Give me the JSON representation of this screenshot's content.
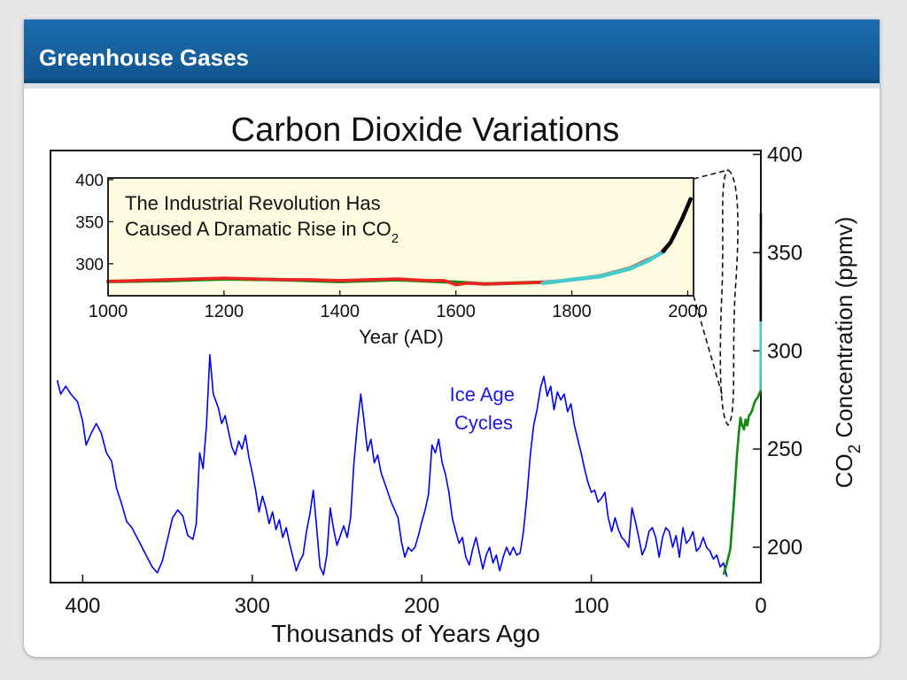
{
  "slide": {
    "title": "Greenhouse Gases"
  },
  "colors": {
    "title_bar": "#1d6db0",
    "ice_age_series": "#0000ee",
    "inset_background": "#fffbe0",
    "series_red": "#ee2222",
    "series_green": "#118811",
    "series_cyan": "#44cccc",
    "series_black": "#000000"
  },
  "chart_data": [
    {
      "type": "line",
      "title": "Carbon Dioxide Variations",
      "xlabel": "Thousands of Years Ago",
      "ylabel_prefix": "CO",
      "ylabel_sub": "2",
      "ylabel_suffix": " Concentration (ppmv)",
      "x_reversed": true,
      "xlim": [
        419,
        0
      ],
      "ylim": [
        182,
        402
      ],
      "x_ticks": [
        400,
        300,
        200,
        100,
        0
      ],
      "y_ticks": [
        200,
        250,
        300,
        350,
        400
      ],
      "y_axis_side": "right",
      "annotation": {
        "line1": "Ice Age",
        "line2": "Cycles"
      },
      "series": [
        {
          "color": "#0000ee",
          "points": [
            [
              415,
              285
            ],
            [
              413,
              278
            ],
            [
              410,
              282
            ],
            [
              407,
              278
            ],
            [
              403,
              274
            ],
            [
              400,
              264
            ],
            [
              398,
              252
            ],
            [
              395,
              258
            ],
            [
              392,
              263
            ],
            [
              389,
              258
            ],
            [
              386,
              248
            ],
            [
              383,
              244
            ],
            [
              380,
              230
            ],
            [
              377,
              222
            ],
            [
              374,
              213
            ],
            [
              371,
              210
            ],
            [
              368,
              205
            ],
            [
              365,
              200
            ],
            [
              362,
              195
            ],
            [
              359,
              190
            ],
            [
              356,
              187
            ],
            [
              353,
              193
            ],
            [
              350,
              204
            ],
            [
              347,
              215
            ],
            [
              344,
              219
            ],
            [
              341,
              216
            ],
            [
              338,
              206
            ],
            [
              335,
              204
            ],
            [
              333,
              212
            ],
            [
              331,
              248
            ],
            [
              329,
              240
            ],
            [
              327,
              262
            ],
            [
              325,
              298
            ],
            [
              323,
              278
            ],
            [
              320,
              271
            ],
            [
              318,
              263
            ],
            [
              316,
              267
            ],
            [
              314,
              259
            ],
            [
              312,
              251
            ],
            [
              310,
              247
            ],
            [
              308,
              254
            ],
            [
              306,
              250
            ],
            [
              304,
              257
            ],
            [
              302,
              246
            ],
            [
              300,
              238
            ],
            [
              298,
              229
            ],
            [
              296,
              218
            ],
            [
              294,
              226
            ],
            [
              292,
              220
            ],
            [
              290,
              212
            ],
            [
              288,
              218
            ],
            [
              286,
              209
            ],
            [
              284,
              214
            ],
            [
              282,
              205
            ],
            [
              280,
              210
            ],
            [
              278,
              202
            ],
            [
              276,
              195
            ],
            [
              274,
              188
            ],
            [
              272,
              193
            ],
            [
              270,
              196
            ],
            [
              268,
              208
            ],
            [
              266,
              217
            ],
            [
              264,
              229
            ],
            [
              262,
              210
            ],
            [
              260,
              190
            ],
            [
              258,
              186
            ],
            [
              256,
              196
            ],
            [
              254,
              220
            ],
            [
              252,
              209
            ],
            [
              250,
              201
            ],
            [
              248,
              206
            ],
            [
              246,
              211
            ],
            [
              244,
              205
            ],
            [
              242,
              215
            ],
            [
              240,
              243
            ],
            [
              238,
              262
            ],
            [
              236,
              278
            ],
            [
              234,
              264
            ],
            [
              232,
              249
            ],
            [
              230,
              255
            ],
            [
              228,
              243
            ],
            [
              226,
              247
            ],
            [
              224,
              238
            ],
            [
              222,
              233
            ],
            [
              220,
              228
            ],
            [
              218,
              223
            ],
            [
              216,
              219
            ],
            [
              214,
              215
            ],
            [
              212,
              203
            ],
            [
              210,
              195
            ],
            [
              208,
              200
            ],
            [
              206,
              198
            ],
            [
              204,
              200
            ],
            [
              202,
              206
            ],
            [
              200,
              213
            ],
            [
              198,
              219
            ],
            [
              196,
              227
            ],
            [
              194,
              252
            ],
            [
              192,
              248
            ],
            [
              190,
              255
            ],
            [
              188,
              243
            ],
            [
              186,
              237
            ],
            [
              184,
              228
            ],
            [
              182,
              215
            ],
            [
              180,
              208
            ],
            [
              178,
              202
            ],
            [
              176,
              205
            ],
            [
              174,
              195
            ],
            [
              172,
              191
            ],
            [
              170,
              199
            ],
            [
              168,
              205
            ],
            [
              166,
              197
            ],
            [
              164,
              189
            ],
            [
              162,
              196
            ],
            [
              160,
              200
            ],
            [
              158,
              192
            ],
            [
              156,
              196
            ],
            [
              154,
              188
            ],
            [
              152,
              195
            ],
            [
              150,
              200
            ],
            [
              148,
              196
            ],
            [
              146,
              200
            ],
            [
              144,
              196
            ],
            [
              142,
              197
            ],
            [
              140,
              208
            ],
            [
              138,
              226
            ],
            [
              136,
              247
            ],
            [
              134,
              262
            ],
            [
              132,
              270
            ],
            [
              130,
              281
            ],
            [
              128,
              287
            ],
            [
              126,
              277
            ],
            [
              124,
              282
            ],
            [
              122,
              270
            ],
            [
              120,
              279
            ],
            [
              118,
              275
            ],
            [
              116,
              278
            ],
            [
              114,
              269
            ],
            [
              112,
              273
            ],
            [
              110,
              262
            ],
            [
              108,
              255
            ],
            [
              106,
              248
            ],
            [
              104,
              240
            ],
            [
              102,
              233
            ],
            [
              100,
              228
            ],
            [
              98,
              229
            ],
            [
              96,
              223
            ],
            [
              94,
              225
            ],
            [
              92,
              228
            ],
            [
              90,
              215
            ],
            [
              88,
              208
            ],
            [
              86,
              215
            ],
            [
              84,
              209
            ],
            [
              82,
              205
            ],
            [
              80,
              203
            ],
            [
              78,
              200
            ],
            [
              76,
              220
            ],
            [
              74,
              213
            ],
            [
              72,
              205
            ],
            [
              70,
              196
            ],
            [
              68,
              200
            ],
            [
              66,
              208
            ],
            [
              64,
              210
            ],
            [
              62,
              205
            ],
            [
              60,
              195
            ],
            [
              58,
              205
            ],
            [
              56,
              210
            ],
            [
              54,
              208
            ],
            [
              52,
              200
            ],
            [
              50,
              206
            ],
            [
              48,
              195
            ],
            [
              46,
              210
            ],
            [
              44,
              202
            ],
            [
              42,
              204
            ],
            [
              40,
              208
            ],
            [
              38,
              198
            ],
            [
              36,
              200
            ],
            [
              34,
              205
            ],
            [
              32,
              200
            ],
            [
              30,
              198
            ],
            [
              28,
              194
            ],
            [
              26,
              196
            ],
            [
              24,
              190
            ],
            [
              22,
              192
            ],
            [
              20,
              185
            ]
          ]
        },
        {
          "color": "#118811",
          "points": [
            [
              22,
              186
            ],
            [
              20,
              192
            ],
            [
              18,
              199
            ],
            [
              16,
              222
            ],
            [
              14,
              248
            ],
            [
              13,
              258
            ],
            [
              12,
              266
            ],
            [
              11,
              262
            ],
            [
              10,
              260
            ],
            [
              9,
              265
            ],
            [
              8,
              262
            ],
            [
              7,
              267
            ],
            [
              6,
              268
            ],
            [
              5,
              270
            ],
            [
              4,
              273
            ],
            [
              3,
              275
            ],
            [
              2,
              276
            ],
            [
              1,
              278
            ],
            [
              0,
              280
            ]
          ]
        },
        {
          "color": "#44cccc",
          "points": [
            [
              0.25,
              280
            ],
            [
              0.2,
              285
            ],
            [
              0.15,
              295
            ],
            [
              0.12,
              305
            ],
            [
              0.1,
              315
            ],
            [
              0.08,
              335
            ]
          ]
        },
        {
          "color": "#000000",
          "points": [
            [
              0.06,
              315
            ],
            [
              0.03,
              340
            ],
            [
              0,
              370
            ]
          ]
        }
      ]
    },
    {
      "type": "line",
      "text_line1": "The Industrial Revolution Has",
      "text_line2_main": "Caused A Dramatic Rise in CO",
      "text_line2_sub": "2",
      "xlabel": "Year (AD)",
      "xlim": [
        1000,
        2010
      ],
      "ylim": [
        262,
        402
      ],
      "x_ticks": [
        1000,
        1200,
        1400,
        1600,
        1800,
        2000
      ],
      "y_ticks": [
        300,
        350,
        400
      ],
      "series": [
        {
          "color": "#118811",
          "points": [
            [
              1000,
              279
            ],
            [
              1100,
              280
            ],
            [
              1200,
              282
            ],
            [
              1300,
              281
            ],
            [
              1400,
              279
            ],
            [
              1500,
              281
            ],
            [
              1600,
              278
            ],
            [
              1650,
              276
            ],
            [
              1700,
              277
            ],
            [
              1750,
              278
            ]
          ]
        },
        {
          "color": "#ee2222",
          "points": [
            [
              1000,
              279
            ],
            [
              1050,
              280
            ],
            [
              1100,
              281
            ],
            [
              1150,
              282
            ],
            [
              1200,
              283
            ],
            [
              1250,
              282
            ],
            [
              1300,
              281
            ],
            [
              1350,
              281
            ],
            [
              1400,
              280
            ],
            [
              1450,
              281
            ],
            [
              1500,
              282
            ],
            [
              1550,
              280
            ],
            [
              1580,
              280
            ],
            [
              1600,
              275
            ],
            [
              1620,
              277
            ],
            [
              1650,
              276
            ],
            [
              1700,
              277
            ],
            [
              1750,
              278
            ],
            [
              1800,
              281
            ],
            [
              1850,
              286
            ],
            [
              1900,
              295
            ],
            [
              1950,
              311
            ],
            [
              1970,
              325
            ],
            [
              1990,
              352
            ],
            [
              2000,
              369
            ]
          ]
        },
        {
          "color": "#44cccc",
          "points": [
            [
              1750,
              277
            ],
            [
              1800,
              281
            ],
            [
              1850,
              285
            ],
            [
              1900,
              294
            ],
            [
              1930,
              303
            ],
            [
              1960,
              315
            ]
          ]
        },
        {
          "color": "#000000",
          "points": [
            [
              1958,
              315
            ],
            [
              1970,
              325
            ],
            [
              1980,
              339
            ],
            [
              1990,
              353
            ],
            [
              2000,
              369
            ],
            [
              2005,
              377
            ]
          ]
        }
      ]
    }
  ]
}
